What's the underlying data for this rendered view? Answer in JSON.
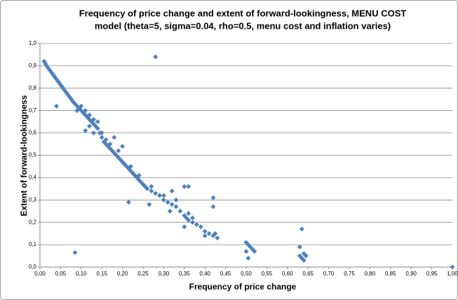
{
  "chart_data": {
    "type": "scatter",
    "title": [
      "Frequency of price change and extent of forward-lookingness, MENU COST",
      "model (theta=5, sigma=0.04, rho=0.5, menu cost and inflation varies)"
    ],
    "x_label": "Frequency of price change",
    "y_label": "Extent of forward-lookingness",
    "color": "#4f81bd",
    "grid": true,
    "xlim": [
      0,
      1
    ],
    "ylim": [
      0,
      1
    ],
    "xticks": [
      {
        "value": 0,
        "label": "0,00"
      },
      {
        "value": 0.05,
        "label": "0,05"
      },
      {
        "value": 0.1,
        "label": "0,10"
      },
      {
        "value": 0.15,
        "label": "0,15"
      },
      {
        "value": 0.2,
        "label": "0,20"
      },
      {
        "value": 0.25,
        "label": "0,25"
      },
      {
        "value": 0.3,
        "label": "0,30"
      },
      {
        "value": 0.35,
        "label": "0,35"
      },
      {
        "value": 0.4,
        "label": "0,40"
      },
      {
        "value": 0.45,
        "label": "0,45"
      },
      {
        "value": 0.5,
        "label": "0,50"
      },
      {
        "value": 0.55,
        "label": "0,55"
      },
      {
        "value": 0.6,
        "label": "0,60"
      },
      {
        "value": 0.65,
        "label": "0,65"
      },
      {
        "value": 0.7,
        "label": "0,70"
      },
      {
        "value": 0.75,
        "label": "0,75"
      },
      {
        "value": 0.8,
        "label": "0,80"
      },
      {
        "value": 0.85,
        "label": "0,85"
      },
      {
        "value": 0.9,
        "label": "0,90"
      },
      {
        "value": 0.95,
        "label": "0,95"
      },
      {
        "value": 1,
        "label": "1,00"
      }
    ],
    "yticks": [
      {
        "value": 0,
        "label": "0,0"
      },
      {
        "value": 0.1,
        "label": "0,1"
      },
      {
        "value": 0.2,
        "label": "0,2"
      },
      {
        "value": 0.3,
        "label": "0,3"
      },
      {
        "value": 0.4,
        "label": "0,4"
      },
      {
        "value": 0.5,
        "label": "0,5"
      },
      {
        "value": 0.6,
        "label": "0,6"
      },
      {
        "value": 0.7,
        "label": "0,7"
      },
      {
        "value": 0.8,
        "label": "0,8"
      },
      {
        "value": 0.9,
        "label": "0,9"
      },
      {
        "value": 1,
        "label": "1,0"
      }
    ],
    "x": [
      0.01,
      0.013,
      0.016,
      0.02,
      0.024,
      0.028,
      0.032,
      0.036,
      0.04,
      0.044,
      0.048,
      0.052,
      0.056,
      0.06,
      0.064,
      0.068,
      0.072,
      0.076,
      0.08,
      0.085,
      0.09,
      0.095,
      0.1,
      0.105,
      0.11,
      0.115,
      0.12,
      0.125,
      0.13,
      0.135,
      0.14,
      0.145,
      0.15,
      0.155,
      0.16,
      0.165,
      0.17,
      0.175,
      0.18,
      0.185,
      0.19,
      0.195,
      0.2,
      0.205,
      0.21,
      0.215,
      0.22,
      0.225,
      0.23,
      0.235,
      0.24,
      0.245,
      0.25,
      0.255,
      0.26,
      0.27,
      0.28,
      0.29,
      0.3,
      0.31,
      0.32,
      0.33,
      0.34,
      0.35,
      0.355,
      0.36,
      0.37,
      0.38,
      0.39,
      0.4,
      0.41,
      0.42,
      0.43,
      0.425,
      0.5,
      0.505,
      0.51,
      0.515,
      0.52,
      0.5,
      0.505,
      0.63,
      0.635,
      0.64,
      0.645,
      0.64,
      0.09,
      0.1,
      0.11,
      0.12,
      0.13,
      0.14,
      0.12,
      0.13,
      0.15,
      0.16,
      0.17,
      0.19,
      0.22,
      0.24,
      0.27,
      0.3,
      0.33,
      0.36,
      0.37,
      0.4,
      0.28,
      0.04,
      0.085,
      0.215,
      0.265,
      0.35,
      0.36,
      0.42,
      0.42,
      0.635,
      0.63,
      1.0,
      0.18,
      0.2,
      0.11,
      0.32,
      0.315,
      0.35
    ],
    "values": [
      0.92,
      0.91,
      0.9,
      0.89,
      0.88,
      0.87,
      0.86,
      0.85,
      0.84,
      0.83,
      0.82,
      0.81,
      0.8,
      0.79,
      0.78,
      0.77,
      0.76,
      0.75,
      0.74,
      0.73,
      0.72,
      0.71,
      0.7,
      0.69,
      0.68,
      0.67,
      0.66,
      0.65,
      0.64,
      0.63,
      0.62,
      0.6,
      0.58,
      0.56,
      0.55,
      0.54,
      0.53,
      0.52,
      0.51,
      0.5,
      0.49,
      0.48,
      0.47,
      0.46,
      0.45,
      0.44,
      0.43,
      0.42,
      0.41,
      0.4,
      0.39,
      0.38,
      0.37,
      0.36,
      0.35,
      0.34,
      0.33,
      0.32,
      0.3,
      0.29,
      0.28,
      0.27,
      0.25,
      0.23,
      0.22,
      0.21,
      0.2,
      0.19,
      0.18,
      0.16,
      0.15,
      0.14,
      0.13,
      0.15,
      0.11,
      0.1,
      0.09,
      0.08,
      0.07,
      0.07,
      0.04,
      0.05,
      0.04,
      0.03,
      0.05,
      0.06,
      0.7,
      0.72,
      0.7,
      0.68,
      0.66,
      0.65,
      0.63,
      0.6,
      0.6,
      0.57,
      0.55,
      0.52,
      0.45,
      0.41,
      0.36,
      0.32,
      0.3,
      0.24,
      0.22,
      0.14,
      0.94,
      0.72,
      0.065,
      0.29,
      0.28,
      0.36,
      0.36,
      0.31,
      0.27,
      0.17,
      0.09,
      0.0,
      0.58,
      0.54,
      0.61,
      0.34,
      0.25,
      0.18
    ]
  }
}
